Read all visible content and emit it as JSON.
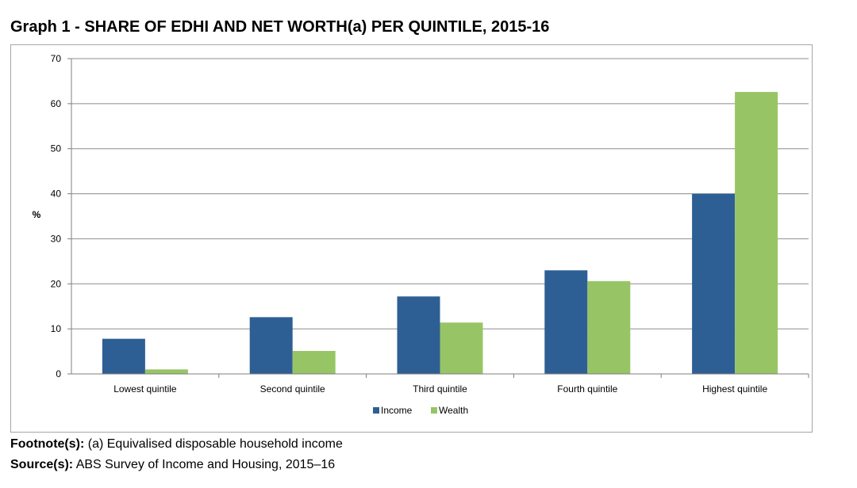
{
  "title": "Graph 1 - SHARE OF EDHI AND NET WORTH(a) PER QUINTILE, 2015-16",
  "colors": {
    "income": "#2e5f94",
    "wealth": "#97c565",
    "gridline": "#8c8c8c",
    "axis": "#7f7f7f"
  },
  "chart_data": {
    "type": "bar",
    "categories": [
      "Lowest quintile",
      "Second quintile",
      "Third quintile",
      "Fourth quintile",
      "Highest quintile"
    ],
    "series": [
      {
        "name": "Income",
        "values": [
          7.8,
          12.6,
          17.2,
          23.0,
          40.0
        ]
      },
      {
        "name": "Wealth",
        "values": [
          1.0,
          5.1,
          11.4,
          20.6,
          62.6
        ]
      }
    ],
    "title": "Graph 1 - SHARE OF EDHI AND NET WORTH(a) PER QUINTILE, 2015-16",
    "xlabel": "",
    "ylabel": "%",
    "ylim": [
      0,
      70
    ],
    "yticks": [
      0,
      10,
      20,
      30,
      40,
      50,
      60,
      70
    ],
    "grid": true,
    "legend_position": "bottom-center"
  },
  "footnote": {
    "label": "Footnote(s):",
    "text": " (a) Equivalised disposable household income"
  },
  "source": {
    "label": "Source(s):",
    "text": " ABS Survey of Income and Housing, 2015–16"
  }
}
